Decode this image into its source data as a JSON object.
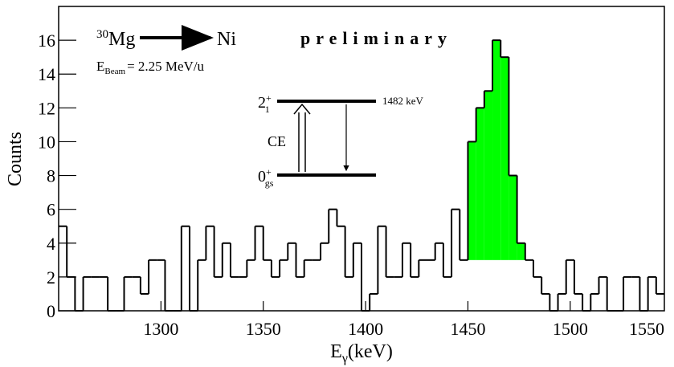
{
  "chart_data": {
    "type": "histogram",
    "bins": [
      1250,
      1254,
      1258,
      1262,
      1266,
      1270,
      1274,
      1278,
      1282,
      1286,
      1290,
      1294,
      1298,
      1302,
      1306,
      1310,
      1314,
      1318,
      1322,
      1326,
      1330,
      1334,
      1338,
      1342,
      1346,
      1350,
      1354,
      1358,
      1362,
      1366,
      1370,
      1374,
      1378,
      1382,
      1386,
      1390,
      1394,
      1398,
      1402,
      1406,
      1410,
      1414,
      1418,
      1422,
      1426,
      1430,
      1434,
      1438,
      1442,
      1446,
      1450,
      1454,
      1458,
      1462,
      1466,
      1470,
      1474,
      1478,
      1482,
      1486,
      1490,
      1494,
      1498,
      1502,
      1506,
      1510,
      1514,
      1518,
      1522,
      1526,
      1530,
      1534,
      1538,
      1542,
      1546
    ],
    "values": [
      5,
      2,
      0,
      2,
      2,
      2,
      0,
      0,
      2,
      2,
      1,
      3,
      3,
      0,
      0,
      5,
      0,
      3,
      5,
      2,
      4,
      2,
      2,
      3,
      5,
      3,
      2,
      3,
      4,
      2,
      3,
      3,
      4,
      6,
      5,
      2,
      4,
      0,
      1,
      5,
      2,
      2,
      4,
      2,
      3,
      3,
      4,
      2,
      6,
      3,
      10,
      12,
      13,
      16,
      15,
      8,
      4,
      3,
      2,
      1,
      0,
      1,
      3,
      1,
      0,
      1,
      2,
      0,
      0,
      2,
      2,
      0,
      2,
      1
    ],
    "color": "#000000",
    "peak_fill": {
      "color": "#00ff00",
      "xlim": [
        1450,
        1478
      ],
      "floor": 3
    },
    "xlim": [
      1250,
      1546
    ],
    "xticks": [
      1300,
      1350,
      1400,
      1450,
      1500,
      1550
    ],
    "ylim": [
      0,
      18
    ],
    "yticks": [
      0,
      2,
      4,
      6,
      8,
      10,
      12,
      14,
      16
    ],
    "x_label": {
      "symbol": "E",
      "subscript": "γ",
      "unit": "(keV)"
    },
    "y_label": "Counts",
    "annotations": {
      "reaction": {
        "mass": "30",
        "projectile": "Mg",
        "target": "Ni"
      },
      "beam": {
        "symbol": "E",
        "subscript": "Beam",
        "value": "= 2.25 MeV/u"
      },
      "watermark": "preliminary",
      "levels": [
        {
          "label": "2",
          "subscript": "1",
          "superscript": "+",
          "energy": "1482 keV"
        },
        {
          "label": "0",
          "subscript": "gs",
          "superscript": "+"
        }
      ],
      "transition": "CE"
    }
  }
}
